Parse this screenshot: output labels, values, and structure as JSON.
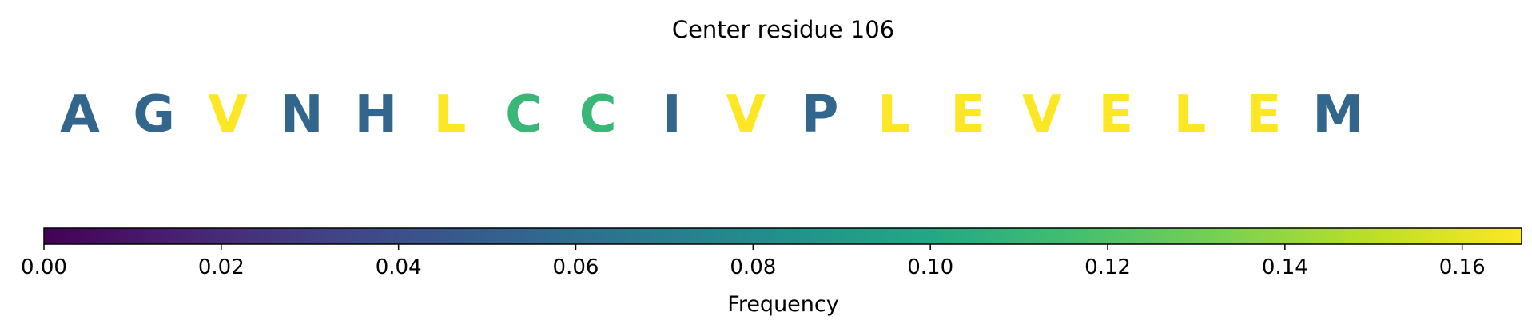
{
  "chart_data": {
    "type": "sequence-logo",
    "title": "Center residue 106",
    "residues": [
      {
        "letter": "A",
        "frequency": 0.055
      },
      {
        "letter": "G",
        "frequency": 0.055
      },
      {
        "letter": "V",
        "frequency": 0.167
      },
      {
        "letter": "N",
        "frequency": 0.055
      },
      {
        "letter": "H",
        "frequency": 0.055
      },
      {
        "letter": "L",
        "frequency": 0.167
      },
      {
        "letter": "C",
        "frequency": 0.111
      },
      {
        "letter": "C",
        "frequency": 0.111
      },
      {
        "letter": "I",
        "frequency": 0.055
      },
      {
        "letter": "V",
        "frequency": 0.167
      },
      {
        "letter": "P",
        "frequency": 0.055
      },
      {
        "letter": "L",
        "frequency": 0.167
      },
      {
        "letter": "E",
        "frequency": 0.167
      },
      {
        "letter": "V",
        "frequency": 0.167
      },
      {
        "letter": "E",
        "frequency": 0.167
      },
      {
        "letter": "L",
        "frequency": 0.167
      },
      {
        "letter": "E",
        "frequency": 0.167
      },
      {
        "letter": "M",
        "frequency": 0.055
      }
    ],
    "colorbar": {
      "label": "Frequency",
      "colormap": "viridis",
      "range": [
        0,
        0.1667
      ],
      "ticks": [
        0.0,
        0.02,
        0.04,
        0.06,
        0.08,
        0.1,
        0.12,
        0.14,
        0.16
      ],
      "tick_labels": [
        "0.00",
        "0.02",
        "0.04",
        "0.06",
        "0.08",
        "0.10",
        "0.12",
        "0.14",
        "0.16"
      ]
    },
    "colors": {
      "low": "#440154",
      "mid_blue": "#31688e",
      "teal": "#21918c",
      "green": "#3bbb75",
      "high": "#fde725"
    }
  }
}
